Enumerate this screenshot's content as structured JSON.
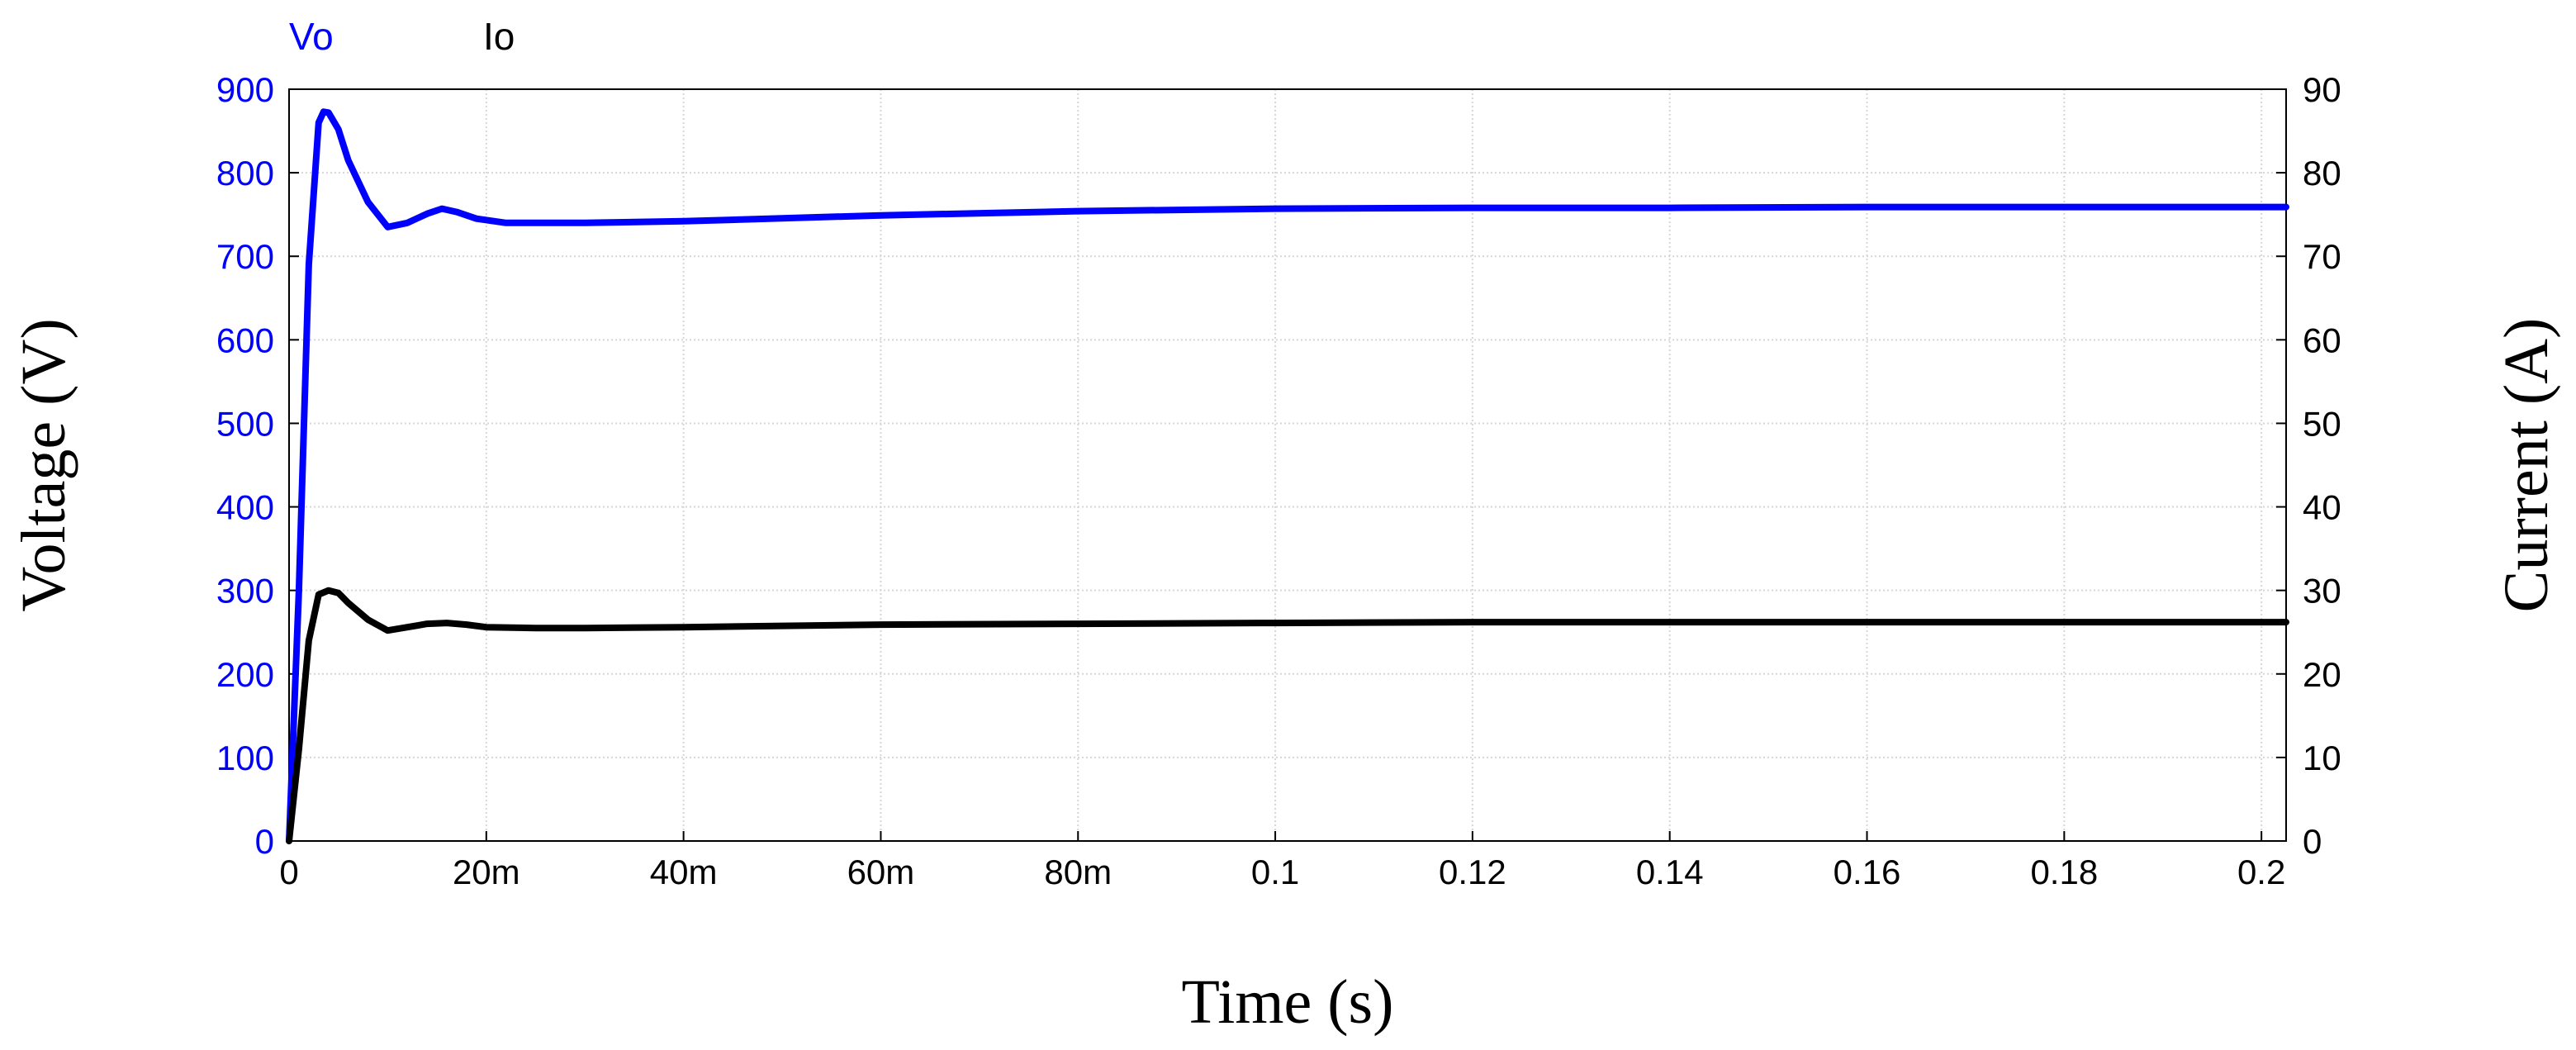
{
  "chart_data": {
    "type": "line",
    "xlabel": "Time (s)",
    "ylabel": "Voltage (V)",
    "y2label": "Current (A)",
    "xlim": [
      0,
      0.2025
    ],
    "ylim": [
      0,
      900
    ],
    "y2lim": [
      0,
      90
    ],
    "grid": true,
    "legend": "top-left",
    "x_ticks": [
      {
        "value": 0,
        "label": "0"
      },
      {
        "value": 0.02,
        "label": "20m"
      },
      {
        "value": 0.04,
        "label": "40m"
      },
      {
        "value": 0.06,
        "label": "60m"
      },
      {
        "value": 0.08,
        "label": "80m"
      },
      {
        "value": 0.1,
        "label": "0.1"
      },
      {
        "value": 0.12,
        "label": "0.12"
      },
      {
        "value": 0.14,
        "label": "0.14"
      },
      {
        "value": 0.16,
        "label": "0.16"
      },
      {
        "value": 0.18,
        "label": "0.18"
      },
      {
        "value": 0.2,
        "label": "0.2"
      }
    ],
    "y_ticks": [
      {
        "value": 0,
        "label": "0"
      },
      {
        "value": 100,
        "label": "100"
      },
      {
        "value": 200,
        "label": "200"
      },
      {
        "value": 300,
        "label": "300"
      },
      {
        "value": 400,
        "label": "400"
      },
      {
        "value": 500,
        "label": "500"
      },
      {
        "value": 600,
        "label": "600"
      },
      {
        "value": 700,
        "label": "700"
      },
      {
        "value": 800,
        "label": "800"
      },
      {
        "value": 900,
        "label": "900"
      }
    ],
    "y2_ticks": [
      {
        "value": 0,
        "label": "0"
      },
      {
        "value": 10,
        "label": "10"
      },
      {
        "value": 20,
        "label": "20"
      },
      {
        "value": 30,
        "label": "30"
      },
      {
        "value": 40,
        "label": "40"
      },
      {
        "value": 50,
        "label": "50"
      },
      {
        "value": 60,
        "label": "60"
      },
      {
        "value": 70,
        "label": "70"
      },
      {
        "value": 80,
        "label": "80"
      },
      {
        "value": 90,
        "label": "90"
      }
    ],
    "series": [
      {
        "name": "Vo",
        "axis": "left",
        "color": "#0000ff",
        "x": [
          0,
          0.001,
          0.002,
          0.003,
          0.0035,
          0.004,
          0.005,
          0.006,
          0.008,
          0.01,
          0.012,
          0.014,
          0.0155,
          0.017,
          0.019,
          0.022,
          0.025,
          0.03,
          0.04,
          0.06,
          0.08,
          0.1,
          0.12,
          0.14,
          0.16,
          0.18,
          0.2025
        ],
        "values": [
          0,
          300,
          690,
          860,
          873,
          872,
          852,
          815,
          765,
          735,
          740,
          751,
          757,
          753,
          745,
          740,
          740,
          740,
          742,
          749,
          754,
          757,
          758,
          758,
          759,
          759,
          759
        ]
      },
      {
        "name": "Io",
        "axis": "right",
        "color": "#000000",
        "x": [
          0,
          0.001,
          0.002,
          0.003,
          0.004,
          0.005,
          0.006,
          0.008,
          0.01,
          0.012,
          0.014,
          0.016,
          0.018,
          0.02,
          0.025,
          0.03,
          0.04,
          0.06,
          0.08,
          0.1,
          0.12,
          0.14,
          0.16,
          0.18,
          0.2025
        ],
        "values": [
          0,
          11,
          24,
          29.5,
          30,
          29.7,
          28.5,
          26.5,
          25.2,
          25.6,
          26,
          26.1,
          25.9,
          25.6,
          25.5,
          25.5,
          25.6,
          25.9,
          26,
          26.1,
          26.2,
          26.2,
          26.2,
          26.2,
          26.2
        ]
      }
    ]
  }
}
